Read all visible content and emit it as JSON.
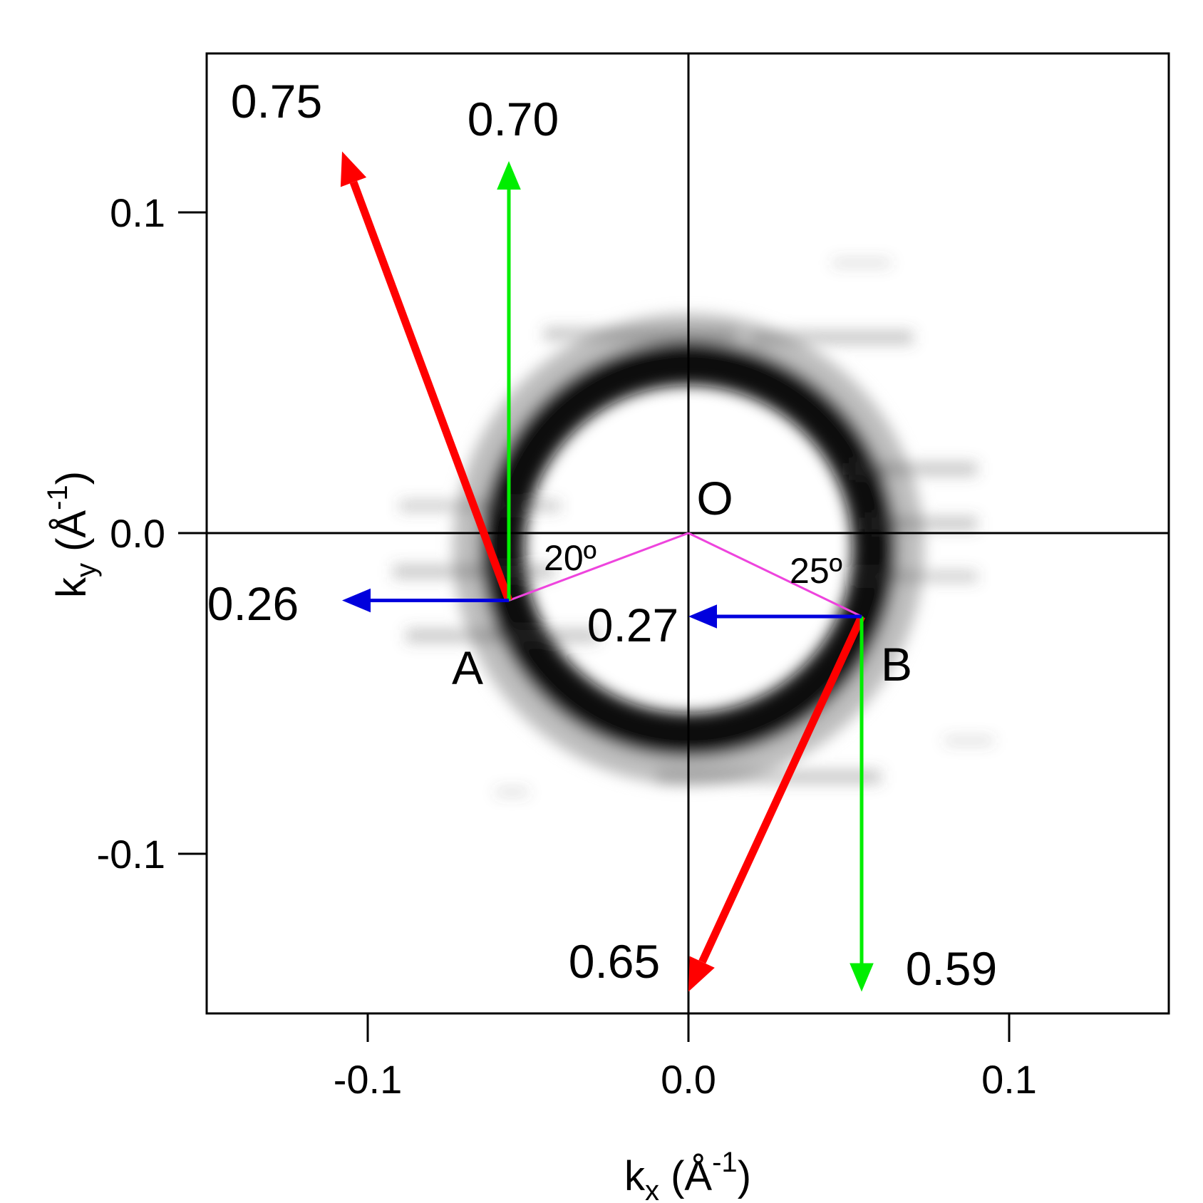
{
  "chart_data": {
    "type": "scatter",
    "xlabel": {
      "main": "k",
      "sub": "x",
      "unit_open": " (Å",
      "unit_sup": "-1",
      "unit_close": ")"
    },
    "ylabel": {
      "main": "k",
      "sub": "y",
      "unit_open": " (Å",
      "unit_sup": "-1",
      "unit_close": ")"
    },
    "xlim": [
      -0.15,
      0.15
    ],
    "ylim": [
      -0.15,
      0.15
    ],
    "x_ticks": [
      -0.1,
      0.0,
      0.1
    ],
    "y_ticks": [
      -0.1,
      0.0,
      0.1
    ],
    "x_tick_labels": [
      "-0.1",
      "0.0",
      "0.1"
    ],
    "y_tick_labels": [
      "-0.1",
      "0.0",
      "0.1"
    ],
    "grid": false,
    "crosshair_at_origin": true,
    "image": {
      "description": "grayscale intensity map",
      "ring_center": [
        0.0,
        -0.005
      ],
      "ring_radius_x": 0.058,
      "ring_radius_y": 0.058,
      "colormap": "white-to-black"
    },
    "points": [
      {
        "name": "O",
        "x": 0.0,
        "y": 0.0
      },
      {
        "name": "A",
        "x": -0.056,
        "y": -0.021
      },
      {
        "name": "B",
        "x": 0.054,
        "y": -0.026
      }
    ],
    "arrows": [
      {
        "from": "A",
        "to": [
          -0.108,
          0.119
        ],
        "color": "#ff0000",
        "label": "0.75"
      },
      {
        "from": "A",
        "to": [
          -0.056,
          0.116
        ],
        "color": "#00ee00",
        "label": "0.70"
      },
      {
        "from": "A",
        "to": [
          -0.108,
          -0.021
        ],
        "color": "#0000dd",
        "label": "0.26"
      },
      {
        "from": "B",
        "to": [
          0.0,
          -0.143
        ],
        "color": "#ff0000",
        "label": "0.65"
      },
      {
        "from": "B",
        "to": [
          0.054,
          -0.143
        ],
        "color": "#00ee00",
        "label": "0.59"
      },
      {
        "from": "B",
        "to": [
          0.0,
          -0.026
        ],
        "color": "#0000dd",
        "label": "0.27"
      }
    ],
    "angle_annotations": [
      {
        "vertex": "A",
        "label": "20º"
      },
      {
        "vertex": "B",
        "label": "25º"
      }
    ],
    "connector_color": "#ee44dd"
  }
}
